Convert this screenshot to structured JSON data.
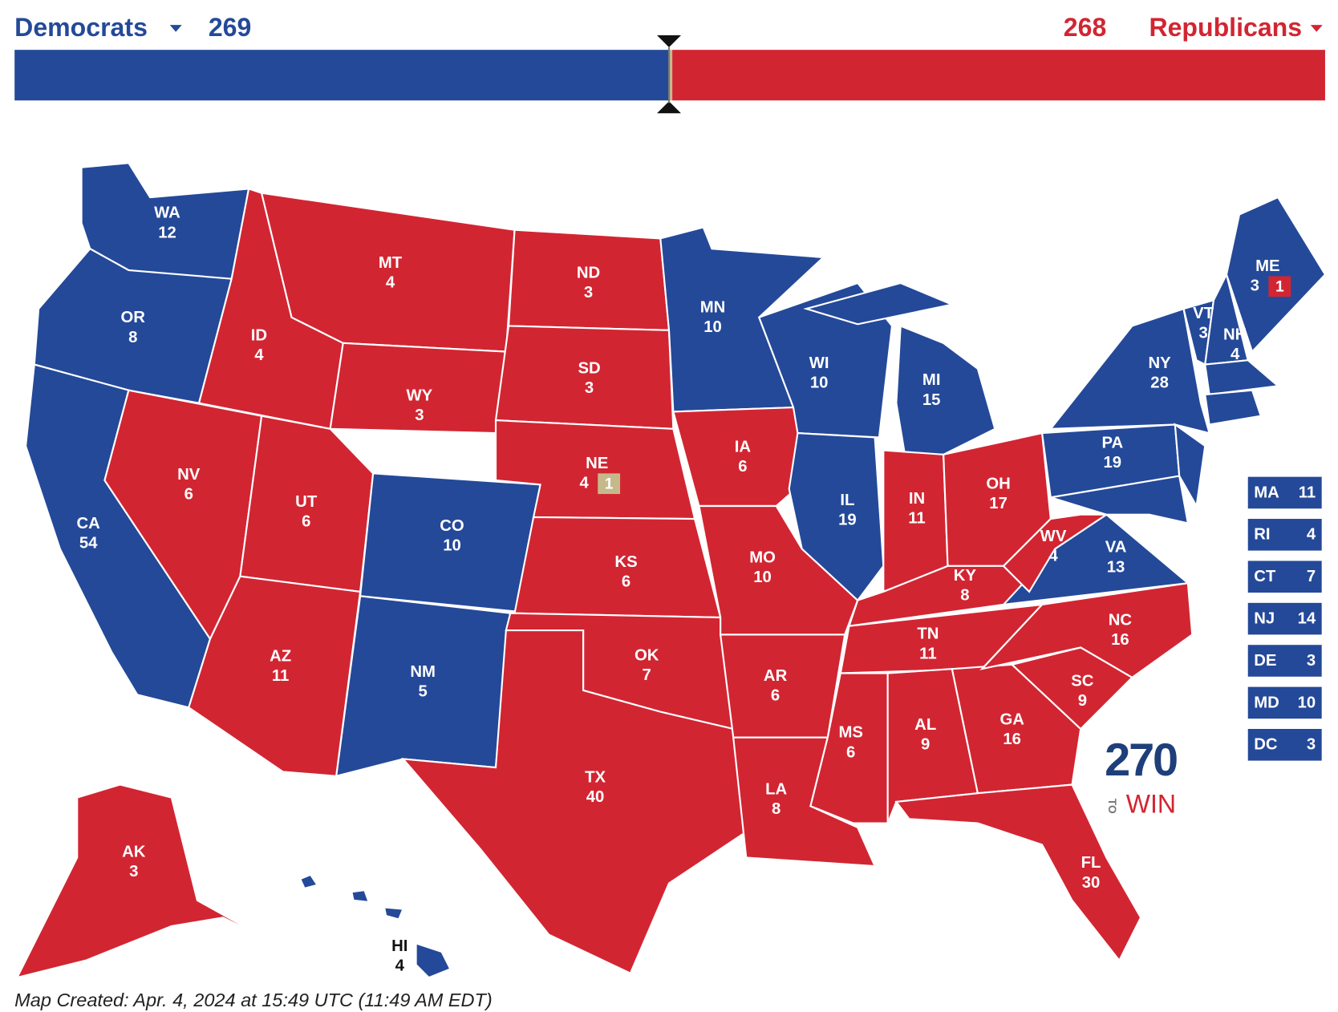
{
  "header": {
    "dem": {
      "label": "Democrats",
      "total": 269
    },
    "rep": {
      "label": "Republicans",
      "total": 268
    }
  },
  "colors": {
    "D": "#244999",
    "R": "#d22532",
    "T": "#c5b98b"
  },
  "states": [
    {
      "abbr": "WA",
      "votes": 12,
      "party": "D"
    },
    {
      "abbr": "OR",
      "votes": 8,
      "party": "D"
    },
    {
      "abbr": "CA",
      "votes": 54,
      "party": "D"
    },
    {
      "abbr": "NV",
      "votes": 6,
      "party": "R"
    },
    {
      "abbr": "ID",
      "votes": 4,
      "party": "R"
    },
    {
      "abbr": "MT",
      "votes": 4,
      "party": "R"
    },
    {
      "abbr": "WY",
      "votes": 3,
      "party": "R"
    },
    {
      "abbr": "UT",
      "votes": 6,
      "party": "R"
    },
    {
      "abbr": "CO",
      "votes": 10,
      "party": "D"
    },
    {
      "abbr": "NM",
      "votes": 5,
      "party": "D"
    },
    {
      "abbr": "AZ",
      "votes": 11,
      "party": "R"
    },
    {
      "abbr": "ND",
      "votes": 3,
      "party": "R"
    },
    {
      "abbr": "SD",
      "votes": 3,
      "party": "R"
    },
    {
      "abbr": "NE",
      "votes": 4,
      "party": "R",
      "district": {
        "votes": 1,
        "party": "T"
      }
    },
    {
      "abbr": "KS",
      "votes": 6,
      "party": "R"
    },
    {
      "abbr": "OK",
      "votes": 7,
      "party": "R"
    },
    {
      "abbr": "TX",
      "votes": 40,
      "party": "R"
    },
    {
      "abbr": "MN",
      "votes": 10,
      "party": "D"
    },
    {
      "abbr": "IA",
      "votes": 6,
      "party": "R"
    },
    {
      "abbr": "MO",
      "votes": 10,
      "party": "R"
    },
    {
      "abbr": "AR",
      "votes": 6,
      "party": "R"
    },
    {
      "abbr": "LA",
      "votes": 8,
      "party": "R"
    },
    {
      "abbr": "WI",
      "votes": 10,
      "party": "D"
    },
    {
      "abbr": "IL",
      "votes": 19,
      "party": "D"
    },
    {
      "abbr": "MI",
      "votes": 15,
      "party": "D"
    },
    {
      "abbr": "IN",
      "votes": 11,
      "party": "R"
    },
    {
      "abbr": "OH",
      "votes": 17,
      "party": "R"
    },
    {
      "abbr": "KY",
      "votes": 8,
      "party": "R"
    },
    {
      "abbr": "TN",
      "votes": 11,
      "party": "R"
    },
    {
      "abbr": "MS",
      "votes": 6,
      "party": "R"
    },
    {
      "abbr": "AL",
      "votes": 9,
      "party": "R"
    },
    {
      "abbr": "GA",
      "votes": 16,
      "party": "R"
    },
    {
      "abbr": "FL",
      "votes": 30,
      "party": "R"
    },
    {
      "abbr": "SC",
      "votes": 9,
      "party": "R"
    },
    {
      "abbr": "NC",
      "votes": 16,
      "party": "R"
    },
    {
      "abbr": "VA",
      "votes": 13,
      "party": "D"
    },
    {
      "abbr": "WV",
      "votes": 4,
      "party": "R"
    },
    {
      "abbr": "PA",
      "votes": 19,
      "party": "D"
    },
    {
      "abbr": "NY",
      "votes": 28,
      "party": "D"
    },
    {
      "abbr": "VT",
      "votes": 3,
      "party": "D"
    },
    {
      "abbr": "NH",
      "votes": 4,
      "party": "D"
    },
    {
      "abbr": "ME",
      "votes": 3,
      "party": "D",
      "district": {
        "votes": 1,
        "party": "R"
      }
    },
    {
      "abbr": "AK",
      "votes": 3,
      "party": "R"
    },
    {
      "abbr": "HI",
      "votes": 4,
      "party": "D"
    }
  ],
  "small_states": [
    {
      "abbr": "MA",
      "votes": 11,
      "party": "D"
    },
    {
      "abbr": "RI",
      "votes": 4,
      "party": "D"
    },
    {
      "abbr": "CT",
      "votes": 7,
      "party": "D"
    },
    {
      "abbr": "NJ",
      "votes": 14,
      "party": "D"
    },
    {
      "abbr": "DE",
      "votes": 3,
      "party": "D"
    },
    {
      "abbr": "MD",
      "votes": 10,
      "party": "D"
    },
    {
      "abbr": "DC",
      "votes": 3,
      "party": "D"
    }
  ],
  "logo": {
    "number": "270",
    "to": "TO",
    "win": "WIN"
  },
  "footer": "Map Created: Apr. 4, 2024 at 15:49 UTC (11:49 AM EDT)"
}
